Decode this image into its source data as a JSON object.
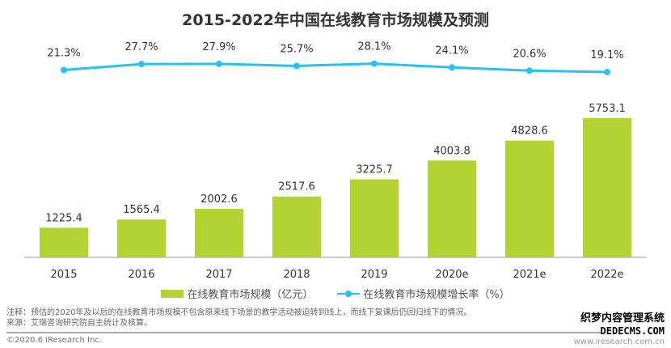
{
  "chart_data": {
    "type": "bar+line",
    "title": "2015-2022年中国在线教育市场规模及预测",
    "categories": [
      "2015",
      "2016",
      "2017",
      "2018",
      "2019",
      "2020e",
      "2021e",
      "2022e"
    ],
    "series": [
      {
        "name": "在线教育市场规模（亿元）",
        "type": "bar",
        "color": "#b3d334",
        "values": [
          1225.4,
          1565.4,
          2002.6,
          2517.6,
          3225.7,
          4003.8,
          4828.6,
          5753.1
        ],
        "labels": [
          "1225.4",
          "1565.4",
          "2002.6",
          "2517.6",
          "3225.7",
          "4003.8",
          "4828.6",
          "5753.1"
        ]
      },
      {
        "name": "在线教育市场规模增长率（%）",
        "type": "line",
        "color": "#27c3ee",
        "values": [
          21.3,
          27.7,
          27.9,
          25.7,
          28.1,
          24.1,
          20.6,
          19.1
        ],
        "labels": [
          "21.3%",
          "27.7%",
          "27.9%",
          "25.7%",
          "28.1%",
          "24.1%",
          "20.6%",
          "19.1%"
        ]
      }
    ],
    "legend": "bottom",
    "grid": false
  },
  "footer": {
    "note": "注释：预估的2020年及以后的在线教育市场规模不包含原来线下场景的教学活动被迫转到线上，而线下复课后仍回归线下的情况。",
    "source": "来源：艾瑞咨询研究院自主统计及核算。",
    "copyright": "©2020.6 iResearch Inc.",
    "site": "www.iresearch.com.cn",
    "watermark1": "织梦内容管理系统",
    "watermark2": "DEDECMS.COM"
  }
}
